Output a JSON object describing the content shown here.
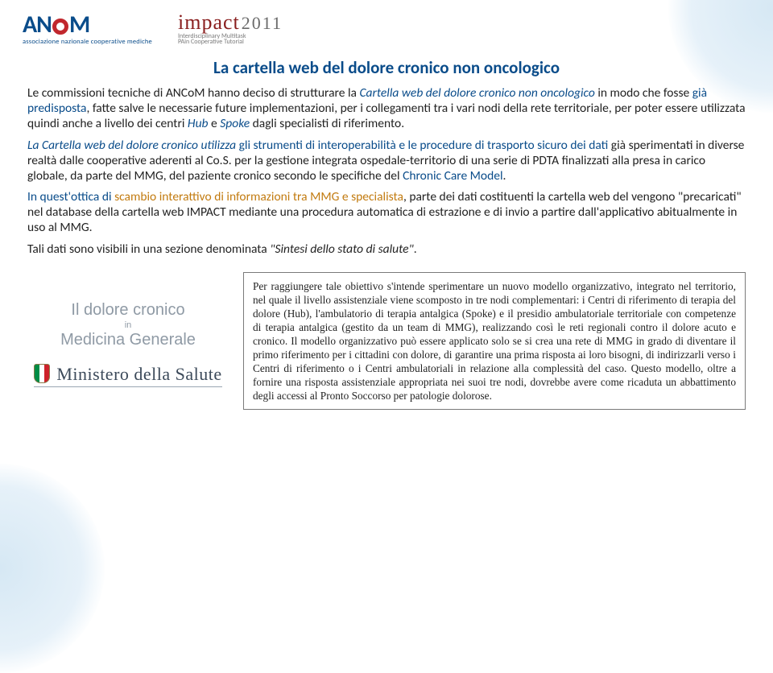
{
  "header": {
    "ancom": {
      "sub": "associazione nazionale cooperative mediche"
    },
    "impact": {
      "word": "impact",
      "year": "2011",
      "sub1": "Interdisciplinary Multitask",
      "sub2": "PAin Cooperative Tutorial"
    }
  },
  "title": "La  cartella web del dolore cronico non oncologico",
  "p1": {
    "t1": "Le commissioni tecniche di ANCoM hanno deciso di strutturare la ",
    "t2": "Cartella web del dolore cronico non oncologico",
    "t3": " in modo che fosse ",
    "t4": "già predisposta",
    "t5": ", fatte salve le necessarie future implementazioni, per i collegamenti tra i vari nodi della rete territoriale, per poter essere utilizzata quindi anche a livello dei centri ",
    "t6": "Hub",
    "t7": " e ",
    "t8": " Spoke",
    "t9": " dagli specialisti di riferimento."
  },
  "p2": {
    "t1": "La Cartella web del dolore cronico utilizza ",
    "t2": "gli strumenti di interoperabilità  e le procedure di trasporto sicuro dei dati ",
    "t3": "già sperimentati in diverse realtà dalle cooperative aderenti al Co.S. per la gestione integrata ospedale-territorio di una serie di PDTA finalizzati alla presa in carico globale, da parte del MMG, del paziente cronico secondo le specifiche del ",
    "t4": "Chronic Care Model",
    "t5": "."
  },
  "p3": {
    "t1": "In quest'ottica di ",
    "t2": "scambio interattivo di informazioni tra MMG e specialista",
    "t3": ", parte dei dati costituenti la cartella web del vengono \"precaricati\" nel database della cartella web IMPACT mediante una procedura automatica di estrazione e di invio a partire dall'applicativo abitualmente in uso al MMG."
  },
  "p4": {
    "t1": "Tali dati sono visibili in una sezione denominata ",
    "t2": "\"Sintesi dello stato di salute\"",
    "t3": "."
  },
  "lower": {
    "dc": {
      "l1": "Il dolore cronico",
      "l2": "in",
      "l3": "Medicina Generale"
    },
    "ministero": "Ministero della Salute",
    "box": "Per raggiungere tale obiettivo s'intende sperimentare un nuovo modello organizzativo, integrato nel territorio, nel quale il livello assistenziale viene scomposto in tre nodi complementari: i Centri di riferimento di terapia del dolore (Hub), l'ambulatorio di terapia antalgica (Spoke) e il presidio ambulatoriale territoriale con competenze di terapia antalgica (gestito da un team di MMG), realizzando così le reti regionali contro il dolore acuto e cronico. Il modello organizzativo può essere applicato solo se si crea una rete di MMG in grado di diventare il primo riferimento per i cittadini con dolore, di garantire una prima risposta ai loro bisogni, di indirizzarli verso i Centri di riferimento o i Centri ambulatoriali in relazione alla complessità del caso. Questo modello, oltre a fornire una risposta assistenziale appropriata nei suoi tre nodi, dovrebbe avere come ricaduta un abbattimento degli accessi al Pronto Soccorso per patologie dolorose."
  },
  "colors": {
    "blue": "#0a4c8a",
    "orange": "#c27b10",
    "impact_red": "#8a1f1f",
    "grey_text": "#8f9aa5",
    "box_border": "#7a7a7a"
  }
}
